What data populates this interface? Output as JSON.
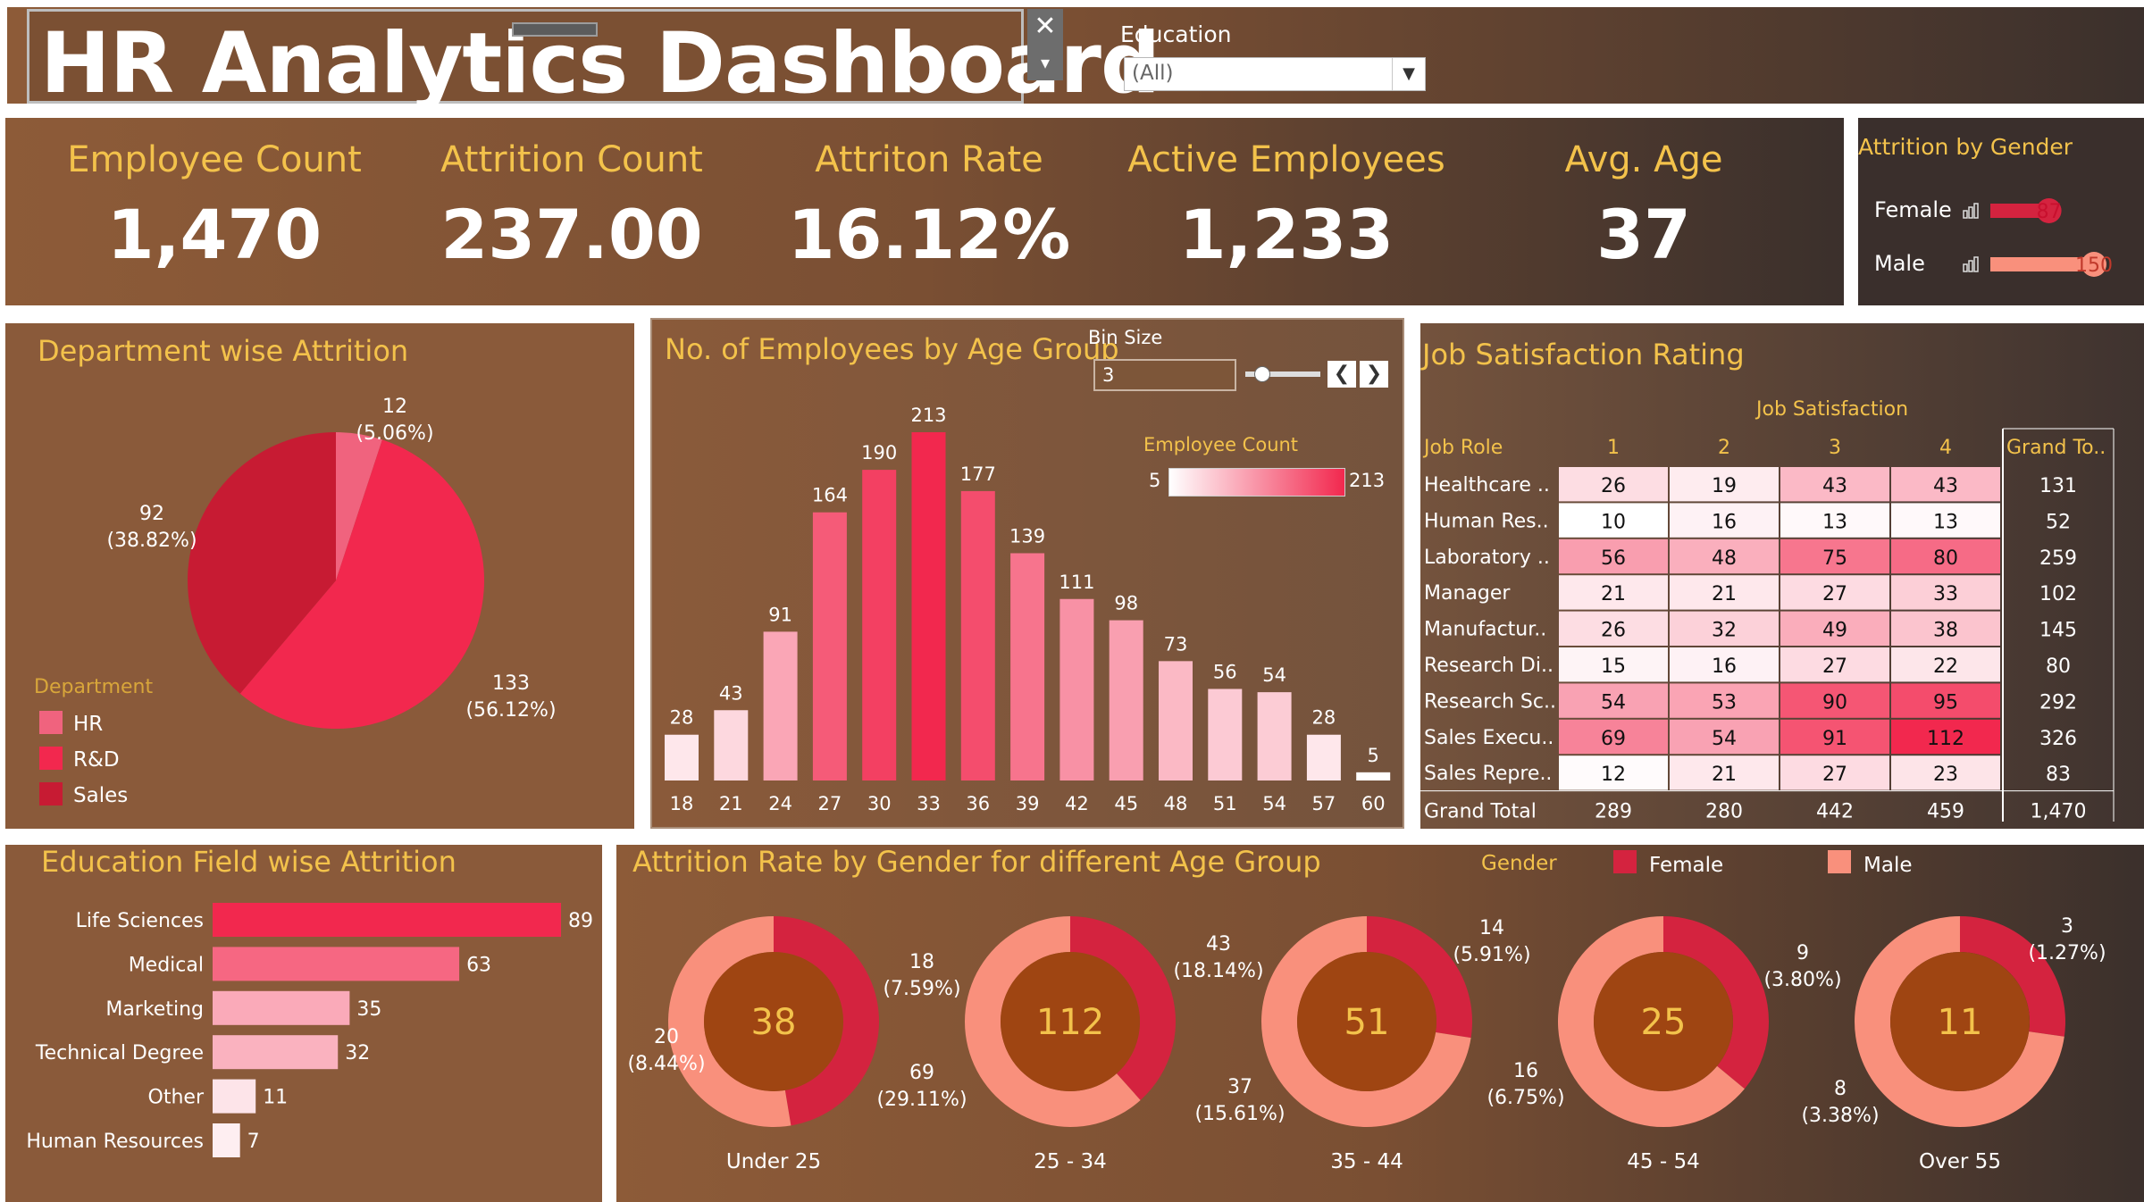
{
  "header": {
    "title": "HR Analytics Dashboard",
    "close_icon": "close-icon",
    "menu_icon": "chevron-down-icon"
  },
  "filter": {
    "label": "Education",
    "value": "(All)"
  },
  "kpis": [
    {
      "label": "Employee Count",
      "value": "1,470"
    },
    {
      "label": "Attrition Count",
      "value": "237.00"
    },
    {
      "label": "Attriton Rate",
      "value": "16.12%"
    },
    {
      "label": "Active Employees",
      "value": "1,233"
    },
    {
      "label": "Avg. Age",
      "value": "37"
    }
  ],
  "gender_panel": {
    "title": "Attrition by Gender",
    "icon": "bar-chart-icon"
  },
  "dept_panel": {
    "title": "Department wise Attrition",
    "legend_title": "Department"
  },
  "age_panel": {
    "title": "No. of Employees by Age Group",
    "bin_label": "Bin Size",
    "bin_value": "3",
    "legend_title": "Employee Count",
    "legend_min": "5",
    "legend_max": "213",
    "prev_icon": "chevron-left-icon",
    "next_icon": "chevron-right-icon"
  },
  "job_panel": {
    "title": "Job Satisfaction Rating",
    "column_group": "Job Satisfaction",
    "row_header": "Job Role",
    "total_header": "Grand To..",
    "total_row_label": "Grand Total"
  },
  "edu_panel": {
    "title": "Education Field wise Attrition"
  },
  "donut_panel": {
    "title": "Attrition Rate by Gender for different Age Group",
    "legend_title": "Gender"
  },
  "colors": {
    "female": "#d4233f",
    "male": "#f9907c",
    "hr": "#f0637e",
    "rnd": "#f2284e",
    "sales": "#c71b33",
    "donut_center": "#9f4512"
  },
  "chart_data": [
    {
      "type": "bar",
      "title": "Attrition by Gender",
      "categories": [
        "Female",
        "Male"
      ],
      "values": [
        87,
        150
      ],
      "value_labels": [
        "87",
        "150"
      ]
    },
    {
      "type": "pie",
      "title": "Department wise Attrition",
      "categories": [
        "HR",
        "R&D",
        "Sales"
      ],
      "values": [
        12,
        133,
        92
      ],
      "labels": [
        "12",
        "133",
        "92"
      ],
      "percents": [
        "(5.06%)",
        "(56.12%)",
        "(38.82%)"
      ],
      "legend": "left-bottom"
    },
    {
      "type": "bar",
      "title": "No. of Employees by Age Group",
      "categories": [
        "18",
        "21",
        "24",
        "27",
        "30",
        "33",
        "36",
        "39",
        "42",
        "45",
        "48",
        "51",
        "54",
        "57",
        "60"
      ],
      "values": [
        28,
        43,
        91,
        164,
        190,
        213,
        177,
        139,
        111,
        98,
        73,
        56,
        54,
        28,
        5
      ],
      "ylim": [
        0,
        213
      ]
    },
    {
      "type": "table",
      "title": "Job Satisfaction Rating",
      "columns": [
        "1",
        "2",
        "3",
        "4"
      ],
      "rows": [
        {
          "role": "Healthcare ..",
          "values": [
            26,
            19,
            43,
            43
          ],
          "total": 131
        },
        {
          "role": "Human Res..",
          "values": [
            10,
            16,
            13,
            13
          ],
          "total": 52
        },
        {
          "role": "Laboratory ..",
          "values": [
            56,
            48,
            75,
            80
          ],
          "total": 259
        },
        {
          "role": "Manager",
          "values": [
            21,
            21,
            27,
            33
          ],
          "total": 102
        },
        {
          "role": "Manufactur..",
          "values": [
            26,
            32,
            49,
            38
          ],
          "total": 145
        },
        {
          "role": "Research Di..",
          "values": [
            15,
            16,
            27,
            22
          ],
          "total": 80
        },
        {
          "role": "Research Sc..",
          "values": [
            54,
            53,
            90,
            95
          ],
          "total": 292
        },
        {
          "role": "Sales Execu..",
          "values": [
            69,
            54,
            91,
            112
          ],
          "total": 326
        },
        {
          "role": "Sales Repre..",
          "values": [
            12,
            21,
            27,
            23
          ],
          "total": 83
        }
      ],
      "column_totals": [
        289,
        280,
        442,
        459
      ],
      "grand_total": "1,470"
    },
    {
      "type": "bar",
      "title": "Education Field wise Attrition",
      "categories": [
        "Life Sciences",
        "Medical",
        "Marketing",
        "Technical Degree",
        "Other",
        "Human Resources"
      ],
      "values": [
        89,
        63,
        35,
        32,
        11,
        7
      ]
    },
    {
      "type": "pie",
      "title": "Attrition Rate by Gender for different Age Group",
      "series_names": [
        "Female",
        "Male"
      ],
      "groups": [
        {
          "name": "Under 25",
          "total": "38",
          "female": 18,
          "female_label": "18",
          "female_pct": "(7.59%)",
          "male": 20,
          "male_label": "20",
          "male_pct": "(8.44%)"
        },
        {
          "name": "25 - 34",
          "total": "112",
          "female": 43,
          "female_label": "43",
          "female_pct": "(18.14%)",
          "male": 69,
          "male_label": "69",
          "male_pct": "(29.11%)"
        },
        {
          "name": "35 - 44",
          "total": "51",
          "female": 14,
          "female_label": "14",
          "female_pct": "(5.91%)",
          "male": 37,
          "male_label": "37",
          "male_pct": "(15.61%)"
        },
        {
          "name": "45 - 54",
          "total": "25",
          "female": 9,
          "female_label": "9",
          "female_pct": "(3.80%)",
          "male": 16,
          "male_label": "16",
          "male_pct": "(6.75%)"
        },
        {
          "name": "Over 55",
          "total": "11",
          "female": 3,
          "female_label": "3",
          "female_pct": "(1.27%)",
          "male": 8,
          "male_label": "8",
          "male_pct": "(3.38%)"
        }
      ]
    }
  ]
}
